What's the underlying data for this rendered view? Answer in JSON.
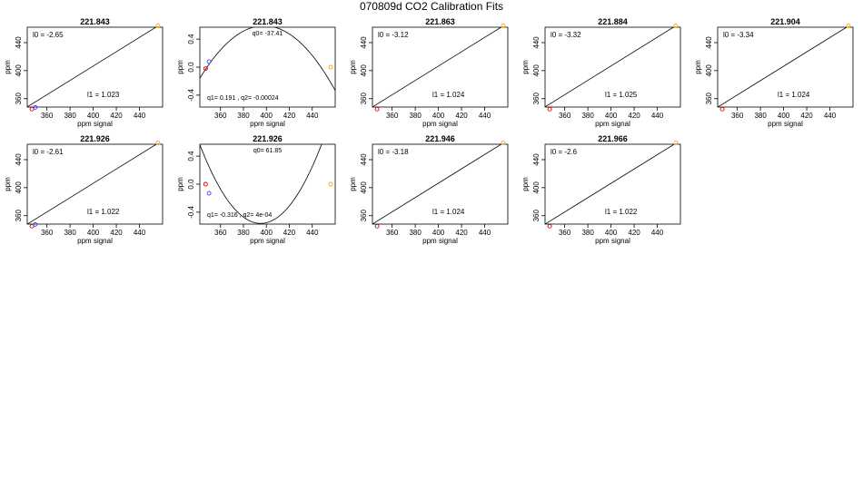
{
  "title": "070809d   CO2 Calibration Fits",
  "chart_data": [
    {
      "type": "scatter",
      "fit": "linear",
      "title": "221.843",
      "xlabel": "ppm signal",
      "ylabel": "ppm",
      "xlim": [
        343,
        460
      ],
      "ylim": [
        348,
        462
      ],
      "xticks": [
        360,
        380,
        400,
        420,
        440
      ],
      "yticks": [
        360,
        400,
        440
      ],
      "points": [
        {
          "x": 347,
          "y": 345,
          "color": "#cc0000"
        },
        {
          "x": 350,
          "y": 347.5,
          "color": "#4444ff"
        },
        {
          "x": 456,
          "y": 464,
          "color": "#ffa500"
        }
      ],
      "line": {
        "a": -2.65,
        "b": 1.023
      },
      "annotations": [
        {
          "text": "l0 =  -2.65",
          "pos": "top-left"
        },
        {
          "text": "l1 =  1.023",
          "pos": "bottom-right"
        }
      ]
    },
    {
      "type": "scatter",
      "fit": "quadratic",
      "title": "221.843",
      "xlabel": "ppm signal",
      "ylabel": "ppm",
      "xlim": [
        342,
        460
      ],
      "ylim": [
        -0.57,
        0.57
      ],
      "xticks": [
        360,
        380,
        400,
        420,
        440
      ],
      "yticks": [
        -0.4,
        0.0,
        0.4
      ],
      "points": [
        {
          "x": 347,
          "y": -0.02,
          "color": "#cc0000"
        },
        {
          "x": 350,
          "y": 0.08,
          "color": "#4444ff"
        },
        {
          "x": 456,
          "y": 0.0,
          "color": "#ffa500"
        }
      ],
      "curve": {
        "q0": -37.41,
        "q1": 0.191,
        "q2": -0.00024
      },
      "annotations": [
        {
          "text": "q0= -37.41",
          "pos": "top-center"
        },
        {
          "text": "q1= 0.191 , q2= -0.00024",
          "pos": "bottom-left"
        }
      ]
    },
    {
      "type": "scatter",
      "fit": "linear",
      "title": "221.863",
      "xlabel": "ppm signal",
      "ylabel": "ppm",
      "xlim": [
        343,
        460
      ],
      "ylim": [
        348,
        462
      ],
      "xticks": [
        360,
        380,
        400,
        420,
        440
      ],
      "yticks": [
        360,
        400,
        440
      ],
      "points": [
        {
          "x": 347,
          "y": 345,
          "color": "#cc0000"
        },
        {
          "x": 456,
          "y": 464,
          "color": "#ffa500"
        }
      ],
      "line": {
        "a": -3.12,
        "b": 1.024
      },
      "annotations": [
        {
          "text": "l0 =  -3.12",
          "pos": "top-left"
        },
        {
          "text": "l1 =  1.024",
          "pos": "bottom-right"
        }
      ]
    },
    {
      "type": "scatter",
      "fit": "linear",
      "title": "221.884",
      "xlabel": "ppm signal",
      "ylabel": "ppm",
      "xlim": [
        343,
        460
      ],
      "ylim": [
        348,
        462
      ],
      "xticks": [
        360,
        380,
        400,
        420,
        440
      ],
      "yticks": [
        360,
        400,
        440
      ],
      "points": [
        {
          "x": 347,
          "y": 345,
          "color": "#cc0000"
        },
        {
          "x": 456,
          "y": 464,
          "color": "#ffa500"
        }
      ],
      "line": {
        "a": -3.32,
        "b": 1.025
      },
      "annotations": [
        {
          "text": "l0 =  -3.32",
          "pos": "top-left"
        },
        {
          "text": "l1 =  1.025",
          "pos": "bottom-right"
        }
      ]
    },
    {
      "type": "scatter",
      "fit": "linear",
      "title": "221.904",
      "xlabel": "ppm signal",
      "ylabel": "ppm",
      "xlim": [
        343,
        460
      ],
      "ylim": [
        348,
        462
      ],
      "xticks": [
        360,
        380,
        400,
        420,
        440
      ],
      "yticks": [
        360,
        400,
        440
      ],
      "points": [
        {
          "x": 347,
          "y": 345,
          "color": "#cc0000"
        },
        {
          "x": 456,
          "y": 464,
          "color": "#ffa500"
        }
      ],
      "line": {
        "a": -3.34,
        "b": 1.024
      },
      "annotations": [
        {
          "text": "l0 =  -3.34",
          "pos": "top-left"
        },
        {
          "text": "l1 =  1.024",
          "pos": "bottom-right"
        }
      ]
    },
    {
      "type": "scatter",
      "fit": "linear",
      "title": "221.926",
      "xlabel": "ppm signal",
      "ylabel": "ppm",
      "xlim": [
        343,
        460
      ],
      "ylim": [
        348,
        462
      ],
      "xticks": [
        360,
        380,
        400,
        420,
        440
      ],
      "yticks": [
        360,
        400,
        440
      ],
      "points": [
        {
          "x": 347,
          "y": 345,
          "color": "#cc0000"
        },
        {
          "x": 350,
          "y": 347.5,
          "color": "#4444ff"
        },
        {
          "x": 456,
          "y": 464,
          "color": "#ffa500"
        }
      ],
      "line": {
        "a": -2.61,
        "b": 1.022
      },
      "annotations": [
        {
          "text": "l0 =  -2.61",
          "pos": "top-left"
        },
        {
          "text": "l1 =  1.022",
          "pos": "bottom-right"
        }
      ]
    },
    {
      "type": "scatter",
      "fit": "quadratic",
      "title": "221.926",
      "xlabel": "ppm signal",
      "ylabel": "ppm",
      "xlim": [
        342,
        460
      ],
      "ylim": [
        -0.57,
        0.57
      ],
      "xticks": [
        360,
        380,
        400,
        420,
        440
      ],
      "yticks": [
        -0.4,
        0.0,
        0.4
      ],
      "points": [
        {
          "x": 347,
          "y": 0.0,
          "color": "#cc0000"
        },
        {
          "x": 350,
          "y": -0.13,
          "color": "#4444ff"
        },
        {
          "x": 456,
          "y": 0.0,
          "color": "#ffa500"
        }
      ],
      "curve": {
        "q0": 61.85,
        "q1": -0.316,
        "q2": 0.0004
      },
      "annotations": [
        {
          "text": "q0= 61.85",
          "pos": "top-center"
        },
        {
          "text": "q1= -0.316 , q2= 4e-04",
          "pos": "bottom-left"
        }
      ]
    },
    {
      "type": "scatter",
      "fit": "linear",
      "title": "221.946",
      "xlabel": "ppm signal",
      "ylabel": "ppm",
      "xlim": [
        343,
        460
      ],
      "ylim": [
        348,
        462
      ],
      "xticks": [
        360,
        380,
        400,
        420,
        440
      ],
      "yticks": [
        360,
        400,
        440
      ],
      "points": [
        {
          "x": 347,
          "y": 345,
          "color": "#cc0000"
        },
        {
          "x": 456,
          "y": 464,
          "color": "#ffa500"
        }
      ],
      "line": {
        "a": -3.18,
        "b": 1.024
      },
      "annotations": [
        {
          "text": "l0 =  -3.18",
          "pos": "top-left"
        },
        {
          "text": "l1 =  1.024",
          "pos": "bottom-right"
        }
      ]
    },
    {
      "type": "scatter",
      "fit": "linear",
      "title": "221.966",
      "xlabel": "ppm signal",
      "ylabel": "ppm",
      "xlim": [
        343,
        460
      ],
      "ylim": [
        348,
        462
      ],
      "xticks": [
        360,
        380,
        400,
        420,
        440
      ],
      "yticks": [
        360,
        400,
        440
      ],
      "points": [
        {
          "x": 347,
          "y": 345,
          "color": "#cc0000"
        },
        {
          "x": 456,
          "y": 464,
          "color": "#ffa500"
        }
      ],
      "line": {
        "a": -2.6,
        "b": 1.022
      },
      "annotations": [
        {
          "text": "l0 =  -2.6",
          "pos": "top-left"
        },
        {
          "text": "l1 =  1.022",
          "pos": "bottom-right"
        }
      ]
    }
  ]
}
